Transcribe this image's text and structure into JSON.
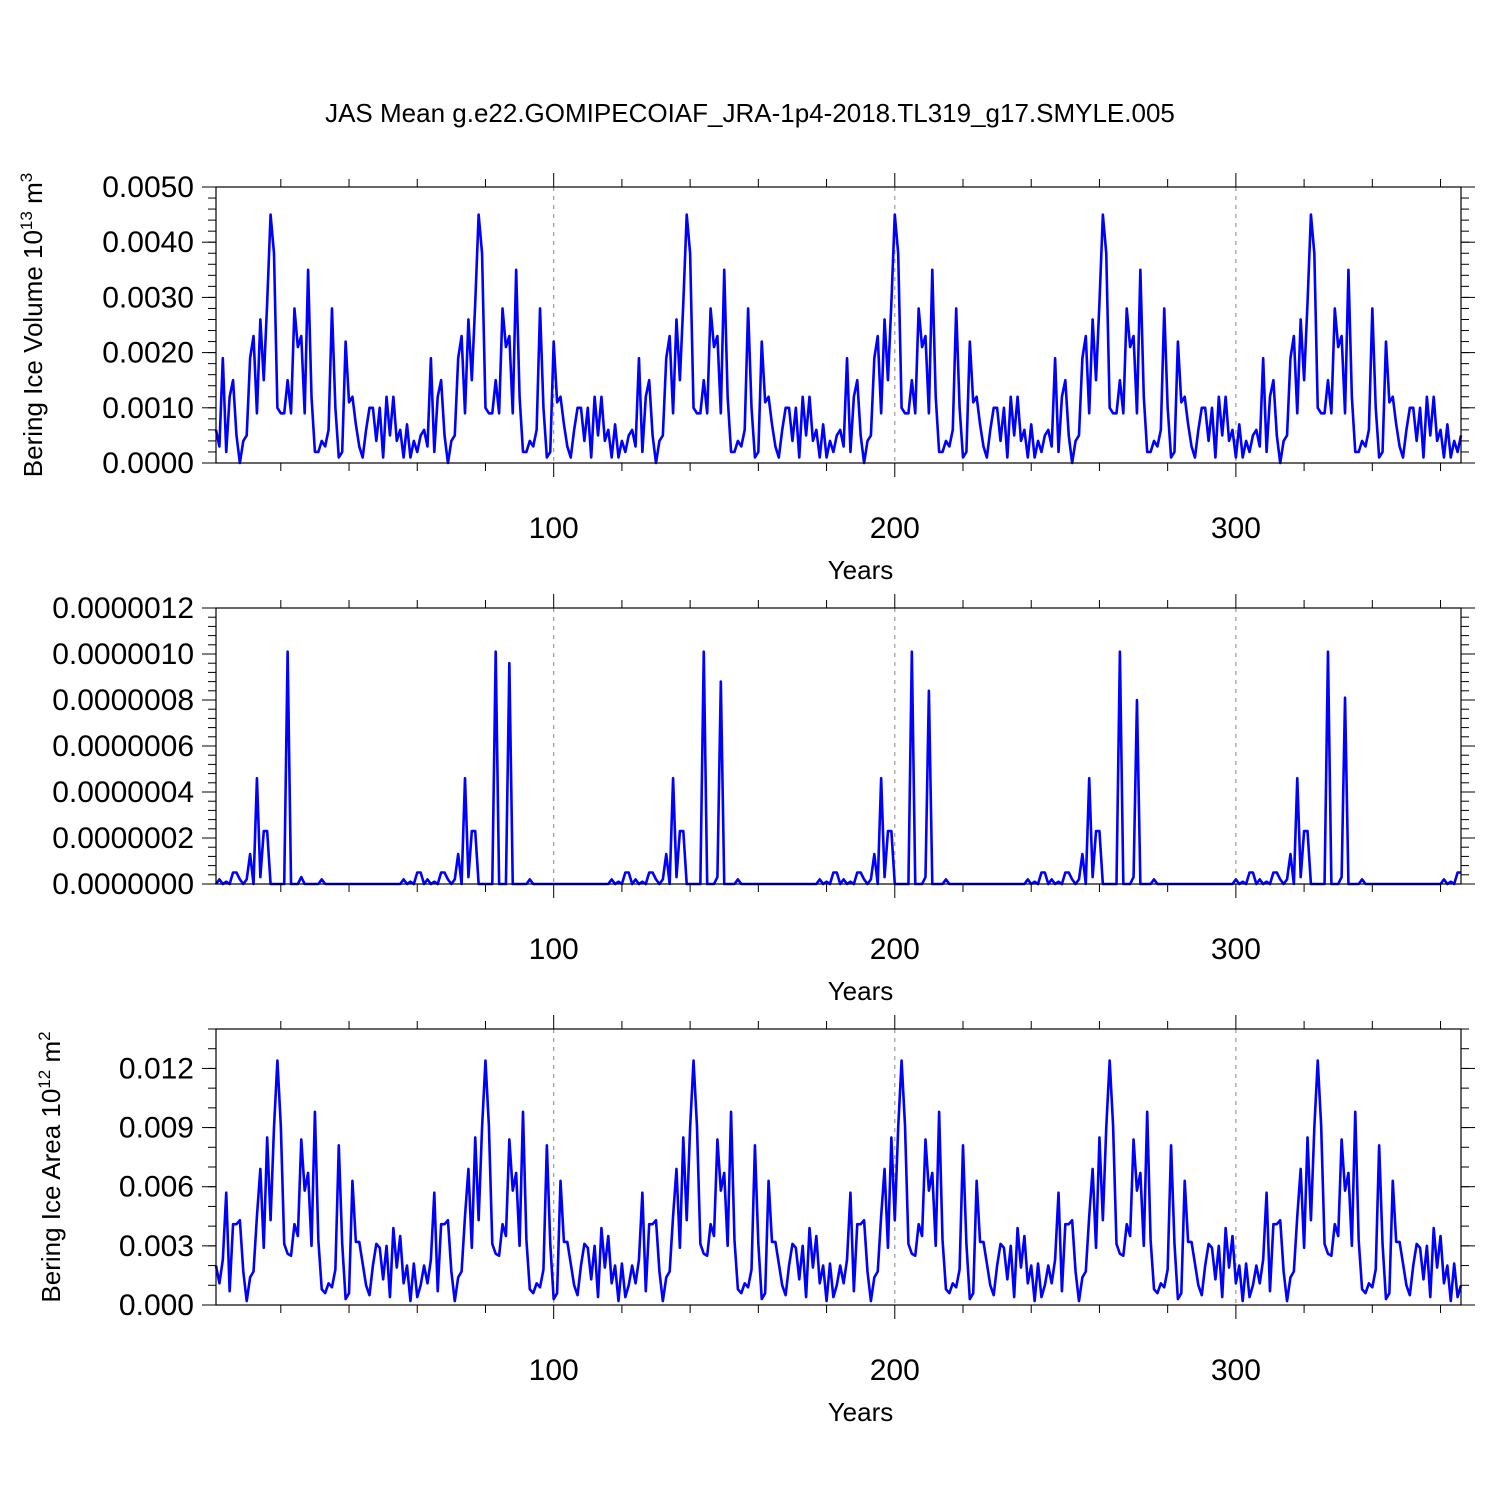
{
  "figure": {
    "title": "JAS Mean g.e22.GOMIPECOIAF_JRA-1p4-2018.TL319_g17.SMYLE.005"
  },
  "style": {
    "line_color": "#0000ff",
    "frame_color": "#000000",
    "grid_color": "#9a9a9a"
  },
  "chart_data": [
    {
      "type": "line",
      "title": "JAS Mean g.e22.GOMIPECOIAF_JRA-1p4-2018.TL319_g17.SMYLE.005",
      "xlabel": "Years",
      "ylabel": {
        "text": "Bering Ice Volume 10",
        "sup": "13",
        "unit": " m",
        "unit_sup": "3"
      },
      "xlim": [
        1,
        366
      ],
      "ylim": [
        0,
        0.005
      ],
      "xticks": [
        100,
        200,
        300
      ],
      "xtick_labels": [
        "100",
        "200",
        "300"
      ],
      "xminor": [
        20,
        40,
        60,
        80,
        120,
        140,
        160,
        180,
        220,
        240,
        260,
        280,
        320,
        340,
        360
      ],
      "yticks": [
        0,
        0.001,
        0.002,
        0.003,
        0.004,
        0.005
      ],
      "ytick_labels": [
        "0.0000",
        "0.0010",
        "0.0020",
        "0.0030",
        "0.0040",
        "0.0050"
      ],
      "yminor_step": 0.0002,
      "grid": "vertical dashed at 100, 200, 300",
      "series": [
        {
          "period": 61,
          "x_start": 1,
          "values": [
            0.0006,
            0.0003,
            0.0019,
            0.0002,
            0.0012,
            0.0015,
            0.0005,
            0.0,
            0.0004,
            0.0005,
            0.0019,
            0.0023,
            0.0009,
            0.0026,
            0.0015,
            0.0029,
            0.0045,
            0.0038,
            0.001,
            0.0009,
            0.0009,
            0.0015,
            0.0009,
            0.0028,
            0.0021,
            0.0023,
            0.0009,
            0.0035,
            0.0012,
            0.0002,
            0.0002,
            0.0004,
            0.0003,
            0.0006,
            0.0028,
            0.001,
            0.0001,
            0.0002,
            0.0022,
            0.0011,
            0.0012,
            0.0007,
            0.0003,
            0.0001,
            0.0006,
            0.001,
            0.001,
            0.0004,
            0.001,
            0.0001,
            0.0012,
            0.0005,
            0.0012,
            0.0004,
            0.0006,
            0.0001,
            0.0007,
            0.0001,
            0.0004,
            0.0002,
            0.0005
          ]
        }
      ]
    },
    {
      "type": "line",
      "xlabel": "Years",
      "xlim": [
        1,
        366
      ],
      "ylim": [
        0,
        1.2e-06
      ],
      "xticks": [
        100,
        200,
        300
      ],
      "xtick_labels": [
        "100",
        "200",
        "300"
      ],
      "xminor": [
        20,
        40,
        60,
        80,
        120,
        140,
        160,
        180,
        220,
        240,
        260,
        280,
        320,
        340,
        360
      ],
      "yticks": [
        0,
        2e-07,
        4e-07,
        6e-07,
        8e-07,
        1e-06,
        1.2e-06
      ],
      "ytick_labels": [
        "0.0000000",
        "0.0000002",
        "0.0000004",
        "0.0000006",
        "0.0000008",
        "0.0000010",
        "0.0000012"
      ],
      "yminor_step": 4e-08,
      "grid": "vertical dashed at 100, 200, 300",
      "series": [
        {
          "period": 61,
          "x_start": 1,
          "values": [
            0,
            2e-08,
            0,
            1e-08,
            0,
            5e-08,
            5e-08,
            2e-08,
            0,
            2e-08,
            1.3e-07,
            0,
            4.6e-07,
            3e-08,
            2.3e-07,
            2.3e-07,
            0,
            0,
            0,
            0,
            0,
            1.01e-06,
            0,
            0,
            0,
            3e-08,
            0,
            0,
            0,
            0,
            0,
            2e-08,
            0,
            0,
            0,
            0,
            0,
            0,
            0,
            0,
            0,
            0,
            0,
            0,
            0,
            0,
            0,
            0,
            0,
            0,
            0,
            0,
            0,
            0,
            0,
            2e-08,
            0,
            1e-08,
            0,
            5e-08,
            5e-08
          ],
          "overrides": [
            {
              "x": 87,
              "value": 9.6e-07
            },
            {
              "x": 149,
              "value": 8.8e-07
            },
            {
              "x": 210,
              "value": 8.4e-07
            },
            {
              "x": 271,
              "value": 8e-07
            },
            {
              "x": 332,
              "value": 8.1e-07
            }
          ]
        }
      ]
    },
    {
      "type": "line",
      "xlabel": "Years",
      "ylabel": {
        "text": "Bering Ice Area 10",
        "sup": "12",
        "unit": " m",
        "unit_sup": "2"
      },
      "xlim": [
        1,
        366
      ],
      "ylim": [
        0,
        0.014
      ],
      "xticks": [
        100,
        200,
        300
      ],
      "xtick_labels": [
        "100",
        "200",
        "300"
      ],
      "xminor": [
        20,
        40,
        60,
        80,
        120,
        140,
        160,
        180,
        220,
        240,
        260,
        280,
        320,
        340,
        360
      ],
      "yticks": [
        0,
        0.003,
        0.006,
        0.009,
        0.012
      ],
      "ytick_labels": [
        "0.000",
        "0.003",
        "0.006",
        "0.009",
        "0.012"
      ],
      "yminor_step": 0.001,
      "grid": "vertical dashed at 100, 200, 300",
      "series": [
        {
          "period": 61,
          "x_start": 1,
          "values": [
            0.002,
            0.0011,
            0.0023,
            0.0057,
            0.0007,
            0.0041,
            0.0041,
            0.0043,
            0.0017,
            0.0002,
            0.0014,
            0.0017,
            0.0045,
            0.0069,
            0.0029,
            0.0085,
            0.0043,
            0.009,
            0.0124,
            0.0091,
            0.0031,
            0.0026,
            0.0025,
            0.0041,
            0.0035,
            0.0084,
            0.0058,
            0.0067,
            0.003,
            0.0098,
            0.0033,
            0.0008,
            0.0006,
            0.0011,
            0.0009,
            0.0018,
            0.0081,
            0.0031,
            0.0003,
            0.0006,
            0.0063,
            0.0032,
            0.0032,
            0.0021,
            0.001,
            0.0005,
            0.002,
            0.0031,
            0.0029,
            0.0013,
            0.003,
            0.0004,
            0.0039,
            0.0019,
            0.0035,
            0.0011,
            0.002,
            0.0002,
            0.0021,
            0.0004,
            0.001
          ]
        }
      ]
    }
  ]
}
